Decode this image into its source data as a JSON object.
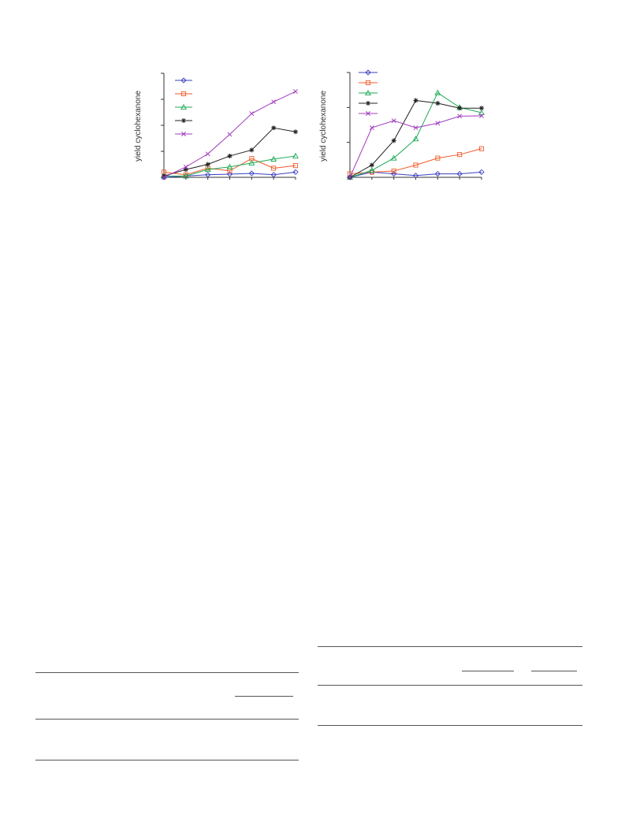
{
  "colors": {
    "blue": "#3a3fbf",
    "orange": "#f05a28",
    "green": "#1aaa55",
    "black": "#222222",
    "purple": "#a33dbf"
  },
  "chart_data": [
    {
      "type": "line",
      "ylabel": "yield cyclohexanone",
      "xlabel": "",
      "title": "",
      "legend": "top-left",
      "grid": false,
      "x": [
        0,
        1,
        2,
        3,
        4,
        5,
        6
      ],
      "xlim": [
        0,
        6
      ],
      "ylim": [
        0,
        4
      ],
      "yticks": [
        0,
        1,
        2,
        3,
        4
      ],
      "series": [
        {
          "color": "#3a3fbf",
          "marker": "diamond",
          "x": [
            0,
            1,
            2,
            3,
            4,
            5,
            6
          ],
          "values": [
            0.0,
            0.05,
            0.1,
            0.12,
            0.15,
            0.1,
            0.2
          ]
        },
        {
          "color": "#f05a28",
          "marker": "square",
          "x": [
            0,
            1,
            2,
            3,
            4,
            5,
            6
          ],
          "values": [
            0.2,
            0.1,
            0.35,
            0.25,
            0.72,
            0.35,
            0.45
          ]
        },
        {
          "color": "#1aaa55",
          "marker": "triangle",
          "x": [
            0,
            1,
            2,
            3,
            4,
            5,
            6
          ],
          "values": [
            0.05,
            0.05,
            0.3,
            0.4,
            0.55,
            0.7,
            0.82
          ]
        },
        {
          "color": "#222222",
          "marker": "asterisk",
          "x": [
            0,
            1,
            2,
            3,
            4,
            5,
            6
          ],
          "values": [
            0.05,
            0.3,
            0.5,
            0.82,
            1.05,
            1.9,
            1.75
          ]
        },
        {
          "color": "#a33dbf",
          "marker": "cross",
          "x": [
            0,
            1,
            2,
            3,
            4,
            5,
            6
          ],
          "values": [
            0.0,
            0.4,
            0.9,
            1.65,
            2.45,
            2.9,
            3.3
          ]
        }
      ]
    },
    {
      "type": "line",
      "ylabel": "yield cyclohexanone",
      "xlabel": "",
      "title": "",
      "legend": "top-left",
      "grid": false,
      "x": [
        0,
        1,
        2,
        3,
        4,
        5,
        6
      ],
      "xlim": [
        0,
        6
      ],
      "ylim": [
        0,
        3
      ],
      "yticks": [
        0,
        1,
        2,
        3
      ],
      "series": [
        {
          "color": "#3a3fbf",
          "marker": "diamond",
          "x": [
            0,
            1,
            2,
            3,
            4,
            5,
            6
          ],
          "values": [
            0.0,
            0.15,
            0.1,
            0.05,
            0.1,
            0.1,
            0.15
          ]
        },
        {
          "color": "#f05a28",
          "marker": "square",
          "x": [
            0,
            1,
            2,
            3,
            4,
            5,
            6
          ],
          "values": [
            0.1,
            0.15,
            0.18,
            0.35,
            0.55,
            0.65,
            0.82
          ]
        },
        {
          "color": "#1aaa55",
          "marker": "triangle",
          "x": [
            0,
            1,
            2,
            3,
            4,
            5,
            6
          ],
          "values": [
            0.0,
            0.2,
            0.55,
            1.1,
            2.42,
            2.0,
            1.85
          ]
        },
        {
          "color": "#222222",
          "marker": "asterisk",
          "x": [
            0,
            1,
            2,
            3,
            4,
            5,
            6
          ],
          "values": [
            0.0,
            0.35,
            1.05,
            2.2,
            2.12,
            1.98,
            1.98
          ]
        },
        {
          "color": "#a33dbf",
          "marker": "cross",
          "x": [
            0,
            1,
            2,
            3,
            4,
            5,
            6
          ],
          "values": [
            0.0,
            1.42,
            1.62,
            1.42,
            1.55,
            1.75,
            1.76
          ]
        }
      ]
    }
  ]
}
